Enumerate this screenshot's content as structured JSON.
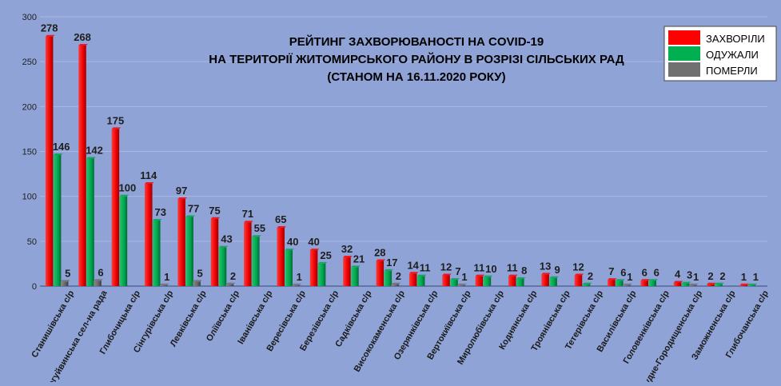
{
  "chart_data": {
    "type": "bar",
    "title_lines": [
      "РЕЙТИНГ ЗАХВОРЮВАНОСТІ НА COVID-19",
      "НА ТЕРИТОРІЇ ЖИТОМИРСЬКОГО РАЙОНУ В РОЗРІЗІ СІЛЬСЬКИХ РАД",
      "(СТАНОМ НА 16.11.2020 РОКУ)"
    ],
    "xlabel": "",
    "ylabel": "",
    "ylim": [
      0,
      300
    ],
    "yticks": [
      "0",
      "50",
      "100",
      "150",
      "200",
      "250",
      "300"
    ],
    "grid": true,
    "legend_position": "top-right",
    "categories": [
      "Станишівська с/р",
      "Новогуйвинська сел-на рада",
      "Глибочицька с/р",
      "Сінгурівська с/р",
      "Левківська с/р",
      "Оліївська с/р",
      "Іванівська с/р",
      "Вересівська с/р",
      "Березівська с/р",
      "Садківська с/р",
      "Висококаменська с/р",
      "Озерянківська с/р",
      "Вертокиївська с/р",
      "Миролюбівська с/р",
      "Коднянська с/р",
      "Троянівська с/р",
      "Тетерівська с/р",
      "Василівська с/р",
      "Головенківська с/р",
      "Рудне-Городищенська с/р",
      "Заможненська с/р",
      "Глибочанська с/р"
    ],
    "series": [
      {
        "name": "ЗАХВОРІЛИ",
        "color": "#ff0000",
        "values": [
          278,
          268,
          175,
          114,
          97,
          75,
          71,
          65,
          40,
          32,
          28,
          14,
          12,
          11,
          11,
          13,
          12,
          7,
          6,
          4,
          2,
          1
        ],
        "labels": [
          "278",
          "268",
          "175",
          "114",
          "97",
          "75",
          "71",
          "65",
          "40",
          "32",
          "28",
          "14",
          "12",
          "11",
          "11",
          "13",
          "12",
          "7",
          "6",
          "4",
          "2",
          "1"
        ]
      },
      {
        "name": "ОДУЖАЛИ",
        "color": "#00a550",
        "values": [
          146,
          142,
          100,
          73,
          77,
          43,
          55,
          40,
          25,
          21,
          17,
          11,
          7,
          10,
          8,
          9,
          2,
          6,
          6,
          3,
          2,
          1
        ],
        "labels": [
          "146",
          "142",
          "100",
          "73",
          "77",
          "43",
          "55",
          "40",
          "25",
          "21",
          "17",
          "11",
          "7",
          "10",
          "8",
          "9",
          "2",
          "6",
          "6",
          "3",
          "2",
          "1"
        ]
      },
      {
        "name": "ПОМЕРЛИ",
        "color": "#707070",
        "values": [
          5,
          6,
          0,
          1,
          5,
          2,
          0,
          1,
          0,
          0,
          2,
          0,
          1,
          0,
          0,
          0,
          0,
          1,
          0,
          1,
          0,
          0
        ],
        "labels": [
          "5",
          "6",
          "",
          "1",
          "5",
          "2",
          "",
          "1",
          "",
          "",
          "2",
          "",
          "1",
          "",
          "",
          "",
          "",
          "1",
          "",
          "1",
          "",
          ""
        ]
      }
    ]
  }
}
